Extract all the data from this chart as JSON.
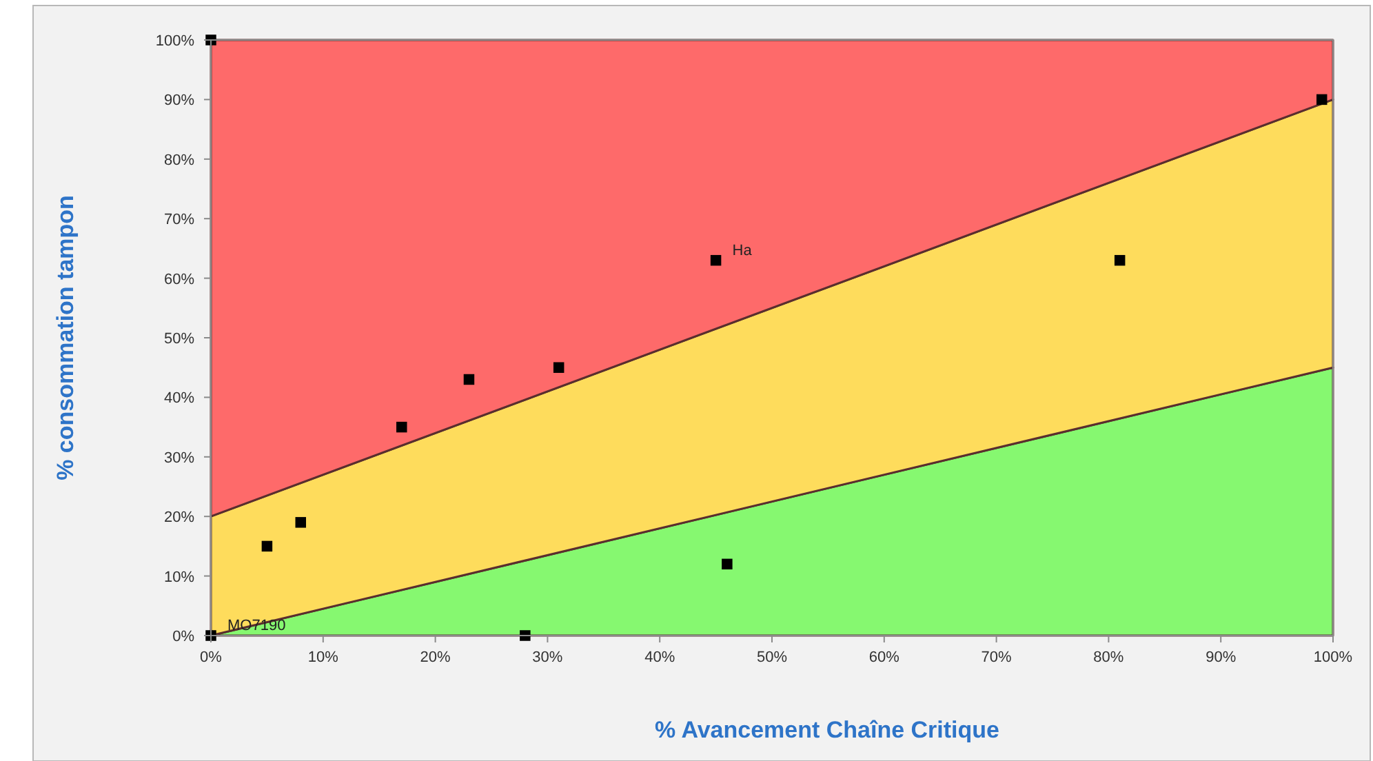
{
  "chart_data": {
    "type": "scatter",
    "xlabel": "% Avancement Chaîne Critique",
    "ylabel": "% consommation tampon",
    "xlim": [
      0,
      100
    ],
    "ylim": [
      0,
      100
    ],
    "xticks": [
      {
        "value": 0,
        "label": "0%"
      },
      {
        "value": 10,
        "label": "10%"
      },
      {
        "value": 20,
        "label": "20%"
      },
      {
        "value": 30,
        "label": "30%"
      },
      {
        "value": 40,
        "label": "40%"
      },
      {
        "value": 50,
        "label": "50%"
      },
      {
        "value": 60,
        "label": "60%"
      },
      {
        "value": 70,
        "label": "70%"
      },
      {
        "value": 80,
        "label": "80%"
      },
      {
        "value": 90,
        "label": "90%"
      },
      {
        "value": 100,
        "label": "100%"
      }
    ],
    "yticks": [
      {
        "value": 0,
        "label": "0%"
      },
      {
        "value": 10,
        "label": "10%"
      },
      {
        "value": 20,
        "label": "20%"
      },
      {
        "value": 30,
        "label": "30%"
      },
      {
        "value": 40,
        "label": "40%"
      },
      {
        "value": 50,
        "label": "50%"
      },
      {
        "value": 60,
        "label": "60%"
      },
      {
        "value": 70,
        "label": "70%"
      },
      {
        "value": 80,
        "label": "80%"
      },
      {
        "value": 90,
        "label": "90%"
      },
      {
        "value": 100,
        "label": "100%"
      }
    ],
    "grid": false,
    "stacked": true,
    "series": [
      {
        "type": "area",
        "color": "#86f870",
        "x": [
          0,
          100
        ],
        "values": [
          0,
          45
        ]
      },
      {
        "type": "area",
        "color": "#fedc5c",
        "x": [
          0,
          100
        ],
        "values": [
          20,
          45
        ]
      },
      {
        "type": "area",
        "color": "#fe6a6a",
        "x": [
          0,
          100
        ],
        "values": [
          80,
          10
        ]
      },
      {
        "color": "#000000",
        "marker": "square",
        "x": [
          0,
          99,
          45,
          81,
          23,
          31,
          17,
          8,
          5,
          46,
          0,
          28
        ],
        "values": [
          100,
          90,
          63,
          63,
          43,
          45,
          35,
          19,
          15,
          12,
          0,
          0
        ]
      }
    ],
    "annotations": [
      {
        "text": "Ha",
        "x": 45,
        "y": 63
      },
      {
        "text": "MO7190",
        "x": 0,
        "y": 0
      }
    ]
  }
}
